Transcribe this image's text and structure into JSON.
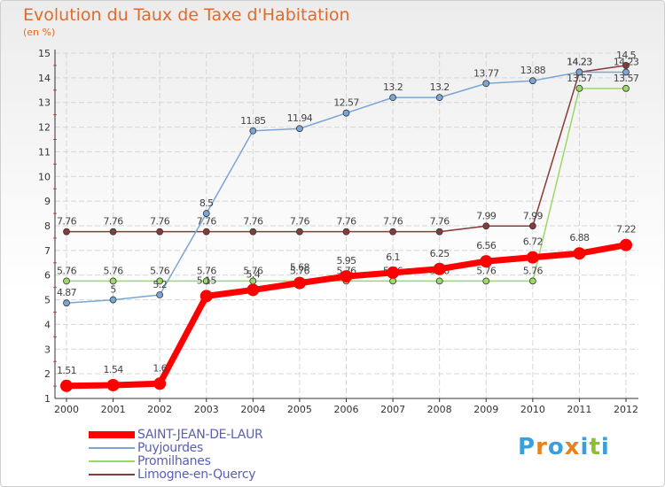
{
  "chart": {
    "title": "Evolution du Taux de Taxe d'Habitation",
    "subtitle": "(en %)"
  },
  "brand": {
    "letters": [
      "P",
      "r",
      "o",
      "x",
      "i",
      "t",
      "i"
    ],
    "colors": [
      "#3aa0dc",
      "#e8821e",
      "#3aa0dc",
      "#e8821e",
      "#3aa0dc",
      "#8dbf2e",
      "#3aa0dc"
    ]
  },
  "chart_data": {
    "type": "line",
    "x": [
      2000,
      2001,
      2002,
      2003,
      2004,
      2005,
      2006,
      2007,
      2008,
      2009,
      2010,
      2011,
      2012
    ],
    "ylim": [
      1,
      15
    ],
    "yticks": [
      1,
      2,
      3,
      4,
      5,
      6,
      7,
      8,
      9,
      10,
      11,
      12,
      13,
      14,
      15
    ],
    "grid": true,
    "legend_position": "bottom-left",
    "series": [
      {
        "name": "SAINT-JEAN-DE-LAUR",
        "color": "#ff0000",
        "values": [
          1.51,
          1.54,
          1.6,
          5.15,
          5.4,
          5.68,
          5.95,
          6.1,
          6.25,
          6.56,
          6.72,
          6.88,
          7.22
        ],
        "labels": [
          "1.51",
          "1.54",
          "1.6",
          "5.15",
          "5.4",
          "5.68",
          "5.95",
          "6.1",
          "6.25",
          "6.56",
          "6.72",
          "6.88",
          "7.22"
        ]
      },
      {
        "name": "Puyjourdes",
        "color": "#7aa6d6",
        "values": [
          4.87,
          5,
          5.2,
          8.5,
          11.85,
          11.94,
          12.57,
          13.2,
          13.2,
          13.77,
          13.88,
          14.23,
          14.23
        ],
        "labels": [
          "4.87",
          "5",
          "5.2",
          "8.5",
          "11.85",
          "11.94",
          "12.57",
          "13.2",
          "13.2",
          "13.77",
          "13.88",
          "14.23",
          "14.23"
        ]
      },
      {
        "name": "Promilhanes",
        "color": "#9ad966",
        "values": [
          5.76,
          5.76,
          5.76,
          5.76,
          5.76,
          5.76,
          5.76,
          5.76,
          5.76,
          5.76,
          5.76,
          13.57,
          13.57
        ],
        "labels": [
          "5.76",
          "5.76",
          "5.76",
          "5.76",
          "5.76",
          "5.76",
          "5.76",
          "5.76",
          "5.76",
          "5.76",
          "5.76",
          "13.57",
          "13.57"
        ]
      },
      {
        "name": "Limogne-en-Quercy",
        "color": "#8b3a3a",
        "values": [
          7.76,
          7.76,
          7.76,
          7.76,
          7.76,
          7.76,
          7.76,
          7.76,
          7.76,
          7.99,
          7.99,
          14.23,
          14.5
        ],
        "labels": [
          "7.76",
          "7.76",
          "7.76",
          "7.76",
          "7.76",
          "7.76",
          "7.76",
          "7.76",
          "7.76",
          "7.99",
          "7.99",
          "14.23",
          "14.5"
        ]
      }
    ]
  }
}
